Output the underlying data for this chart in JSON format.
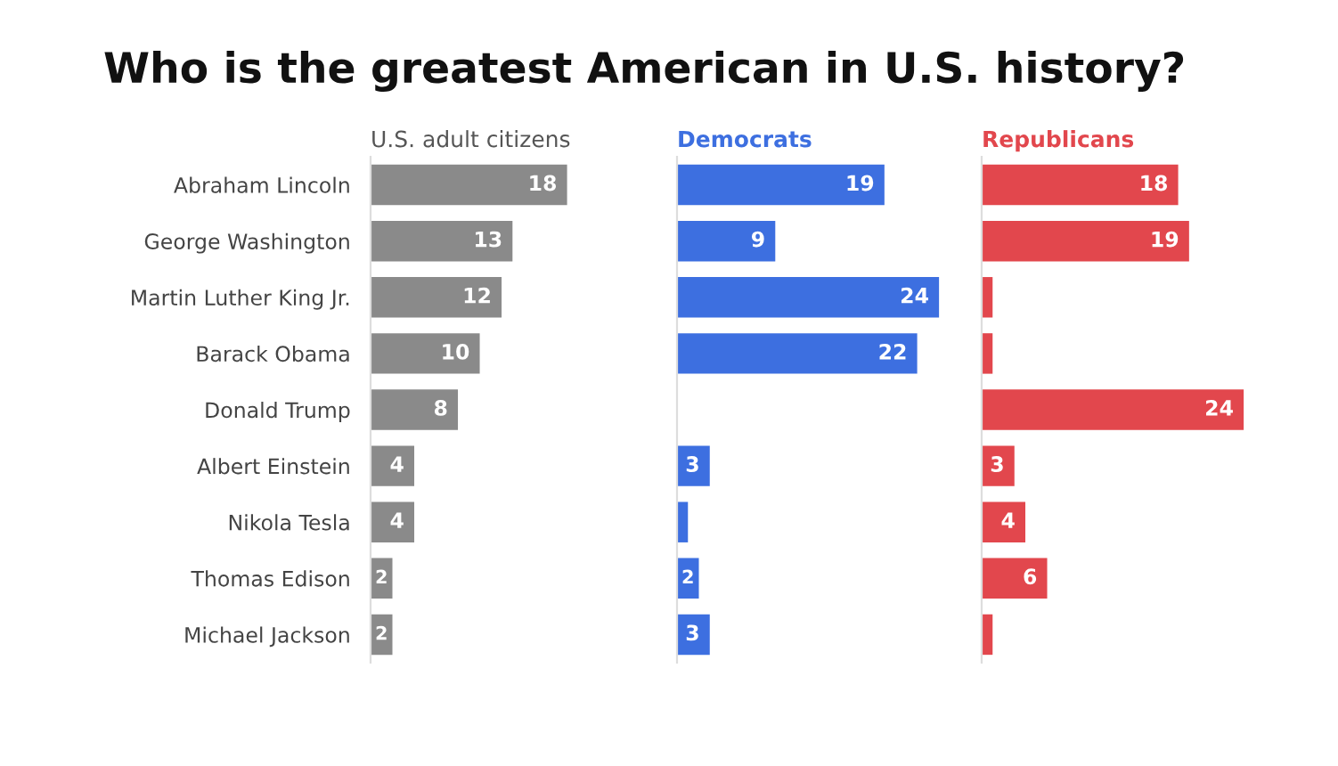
{
  "chart_data": [
    {
      "type": "bar",
      "orientation": "horizontal",
      "title": "Who is the greatest American in U.S. history?",
      "subtitle": "U.S. adult citizens",
      "tick_labels": "y",
      "categories": [
        "Abraham Lincoln",
        "George Washington",
        "Martin Luther King Jr.",
        "Barack Obama",
        "Donald Trump",
        "Albert Einstein",
        "Nikola Tesla",
        "Thomas Edison",
        "Michael Jackson"
      ],
      "series": [
        {
          "color": "#8a8a8a",
          "values": [
            18,
            13,
            12,
            10,
            8,
            4,
            4,
            2,
            2
          ]
        }
      ],
      "data_labels": true
    },
    {
      "type": "bar",
      "orientation": "horizontal",
      "subtitle": "Democrats",
      "tick_labels": false,
      "series": [
        {
          "color": "#3d6fe0",
          "values": [
            19,
            9,
            24,
            22,
            0,
            3,
            1,
            2,
            3
          ],
          "value_labels": [
            "19",
            "9",
            "24",
            "22",
            null,
            "3",
            null,
            "2",
            "3"
          ]
        }
      ]
    },
    {
      "type": "bar",
      "orientation": "horizontal",
      "subtitle": "Republicans",
      "tick_labels": false,
      "series": [
        {
          "color": "#e2474d",
          "values": [
            18,
            19,
            1,
            1,
            24,
            3,
            4,
            6,
            1
          ],
          "value_labels": [
            "18",
            "19",
            null,
            null,
            "24",
            "3",
            "4",
            "6",
            null
          ]
        }
      ]
    }
  ]
}
